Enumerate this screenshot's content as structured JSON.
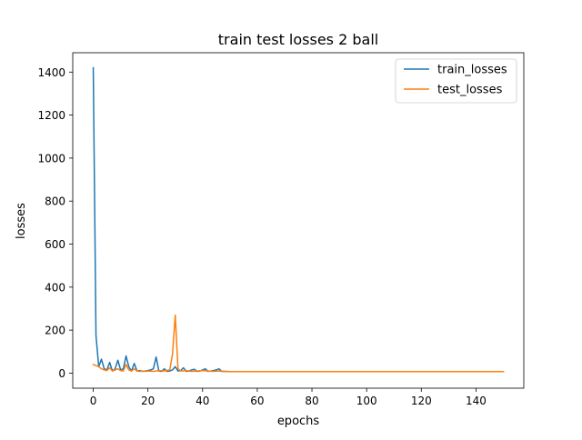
{
  "chart_data": {
    "type": "line",
    "title": "train test losses 2 ball",
    "xlabel": "epochs",
    "ylabel": "losses",
    "xlim": [
      -7.5,
      157.5
    ],
    "ylim": [
      -70,
      1490
    ],
    "xticks": [
      0,
      20,
      40,
      60,
      80,
      100,
      120,
      140
    ],
    "yticks": [
      0,
      200,
      400,
      600,
      800,
      1000,
      1200,
      1400
    ],
    "xtick_labels": [
      "0",
      "20",
      "40",
      "60",
      "80",
      "100",
      "120",
      "140"
    ],
    "ytick_labels": [
      "0",
      "200",
      "400",
      "600",
      "800",
      "1000",
      "1200",
      "1400"
    ],
    "legend_position": "top-right",
    "grid": false,
    "series": [
      {
        "name": "train_losses",
        "color": "#1f77b4",
        "x": [
          0,
          1,
          2,
          3,
          4,
          5,
          6,
          7,
          8,
          9,
          10,
          11,
          12,
          13,
          14,
          15,
          16,
          17,
          18,
          19,
          20,
          21,
          22,
          23,
          24,
          25,
          26,
          27,
          28,
          29,
          30,
          31,
          32,
          33,
          34,
          35,
          36,
          37,
          38,
          39,
          40,
          41,
          42,
          43,
          44,
          45,
          46,
          47,
          48,
          50,
          60,
          70,
          80,
          90,
          100,
          110,
          120,
          130,
          140,
          150
        ],
        "y": [
          1420,
          175,
          30,
          65,
          20,
          15,
          50,
          10,
          20,
          60,
          15,
          20,
          80,
          30,
          10,
          45,
          10,
          12,
          8,
          10,
          12,
          15,
          20,
          75,
          10,
          8,
          20,
          8,
          10,
          15,
          30,
          10,
          12,
          25,
          8,
          10,
          15,
          18,
          8,
          10,
          15,
          20,
          8,
          10,
          12,
          15,
          20,
          8,
          8,
          7,
          7,
          7,
          7,
          7,
          7,
          7,
          7,
          7,
          7,
          7
        ]
      },
      {
        "name": "test_losses",
        "color": "#ff7f0e",
        "x": [
          0,
          1,
          2,
          3,
          4,
          5,
          6,
          7,
          8,
          9,
          10,
          11,
          12,
          13,
          14,
          15,
          16,
          17,
          18,
          19,
          20,
          22,
          24,
          26,
          28,
          29,
          30,
          31,
          32,
          34,
          36,
          38,
          40,
          42,
          44,
          46,
          48,
          50,
          60,
          70,
          80,
          90,
          100,
          110,
          120,
          130,
          140,
          150
        ],
        "y": [
          40,
          35,
          30,
          20,
          15,
          12,
          25,
          10,
          15,
          20,
          12,
          10,
          40,
          15,
          10,
          20,
          10,
          8,
          10,
          8,
          10,
          8,
          12,
          10,
          15,
          90,
          270,
          20,
          10,
          12,
          8,
          10,
          12,
          10,
          8,
          10,
          8,
          7,
          7,
          7,
          7,
          7,
          7,
          7,
          7,
          7,
          7,
          7
        ]
      }
    ]
  }
}
